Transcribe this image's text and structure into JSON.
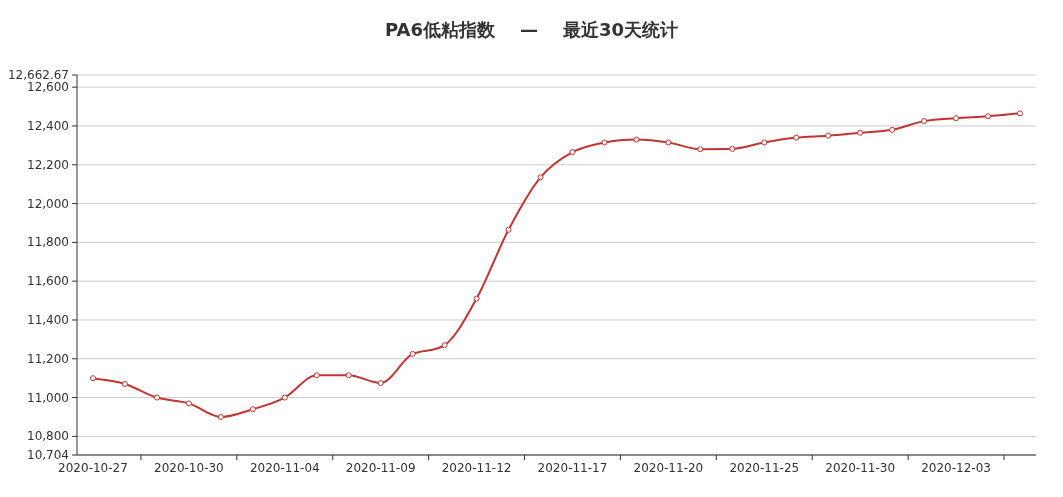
{
  "chart_data": {
    "type": "line",
    "title": "PA6低粘指数    —    最近30天统计",
    "categories": [
      "2020-10-27",
      null,
      null,
      "2020-10-30",
      null,
      null,
      "2020-11-04",
      null,
      null,
      "2020-11-09",
      null,
      null,
      "2020-11-12",
      null,
      null,
      "2020-11-17",
      null,
      null,
      "2020-11-20",
      null,
      null,
      "2020-11-25",
      null,
      null,
      "2020-11-30",
      null,
      null,
      "2020-12-03",
      null,
      null
    ],
    "series": [
      {
        "color": "#c23531",
        "values": [
          11100,
          11070,
          11000,
          10970,
          10900,
          10940,
          11000,
          11115,
          11115,
          11075,
          11225,
          11270,
          11510,
          11865,
          12135,
          12265,
          12315,
          12330,
          12315,
          12280,
          12282,
          12315,
          12340,
          12350,
          12365,
          12380,
          12425,
          12440,
          12450,
          12465
        ]
      }
    ],
    "ylim": [
      10704,
      12662.67
    ],
    "yticks": [
      {
        "value": 10704,
        "label": "10,704"
      },
      {
        "value": 10800,
        "label": "10,800"
      },
      {
        "value": 11000,
        "label": "11,000"
      },
      {
        "value": 11200,
        "label": "11,200"
      },
      {
        "value": 11400,
        "label": "11,400"
      },
      {
        "value": 11600,
        "label": "11,600"
      },
      {
        "value": 11800,
        "label": "11,800"
      },
      {
        "value": 12000,
        "label": "12,000"
      },
      {
        "value": 12200,
        "label": "12,200"
      },
      {
        "value": 12400,
        "label": "12,400"
      },
      {
        "value": 12600,
        "label": "12,600"
      },
      {
        "value": 12662.67,
        "label": "12,662.67"
      }
    ],
    "grid": "y",
    "marker": "circle",
    "line_style": "solid"
  }
}
